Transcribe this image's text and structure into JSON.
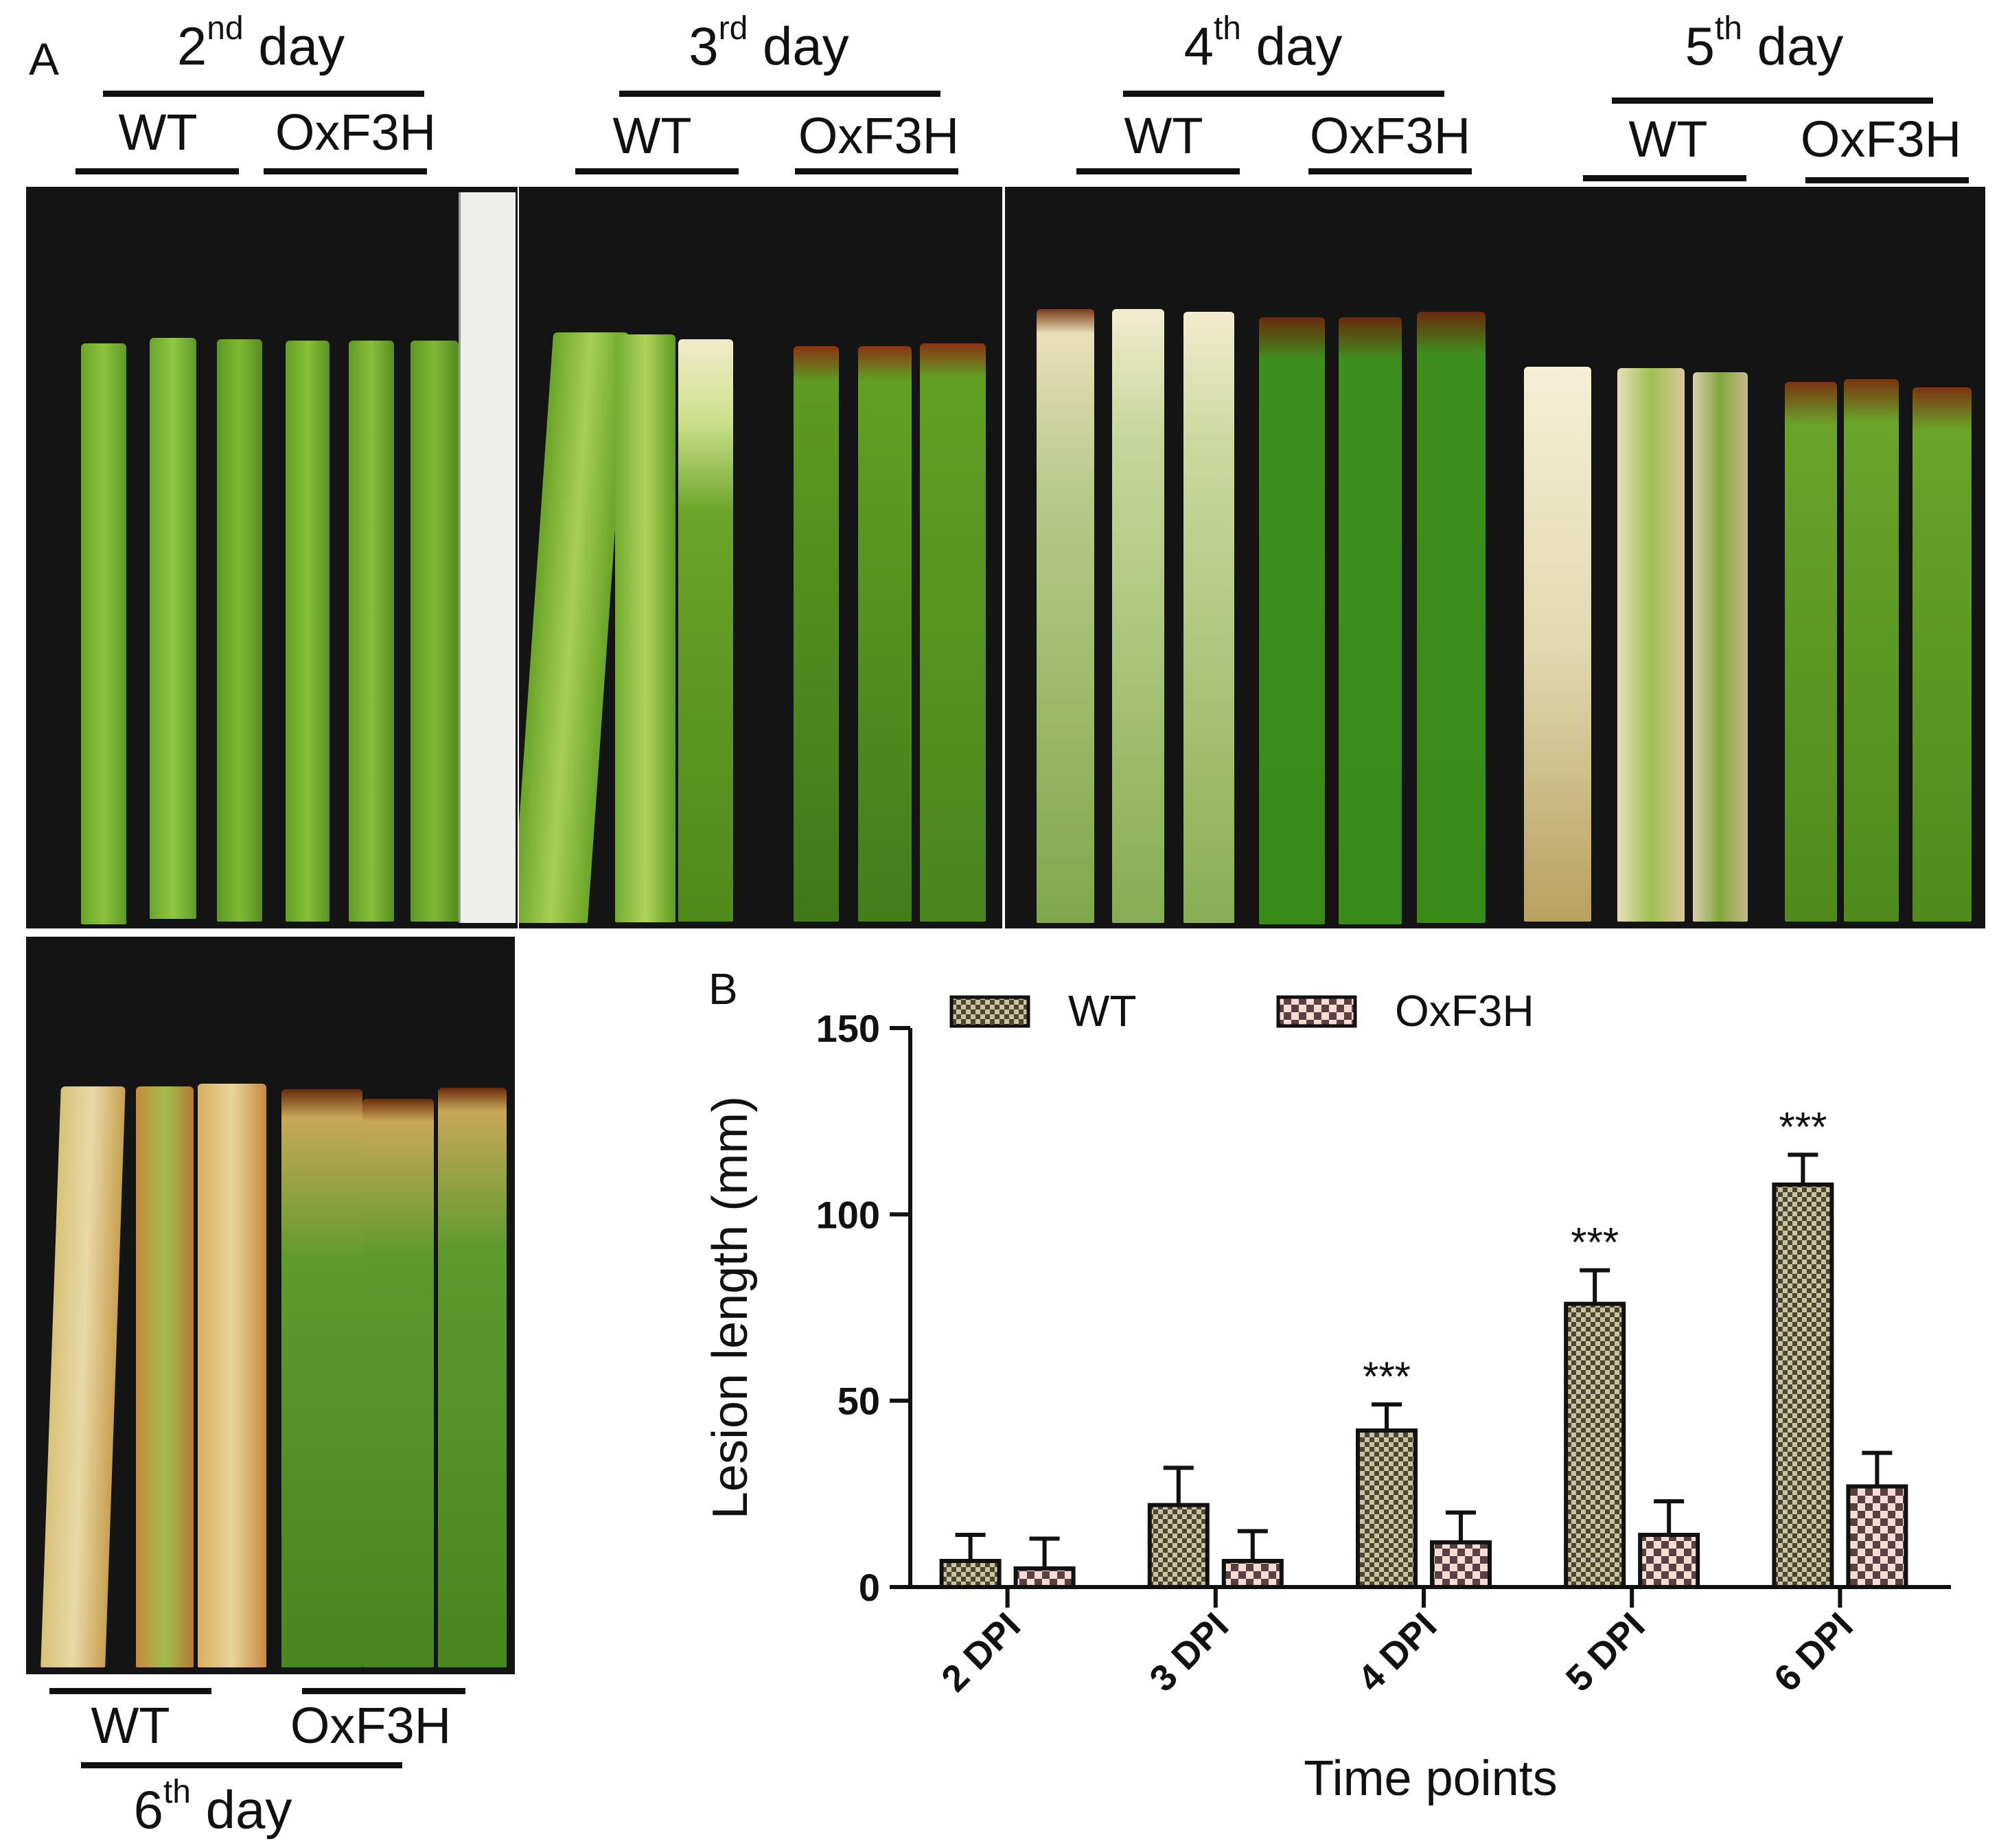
{
  "panel_a": {
    "letter": "A",
    "days": [
      {
        "num": "2",
        "suffix": "nd",
        "word": "day",
        "wt": "WT",
        "ox": "OxF3H"
      },
      {
        "num": "3",
        "suffix": "rd",
        "word": "day",
        "wt": "WT",
        "ox": "OxF3H"
      },
      {
        "num": "4",
        "suffix": "th",
        "word": "day",
        "wt": "WT",
        "ox": "OxF3H"
      },
      {
        "num": "5",
        "suffix": "th",
        "word": "day",
        "wt": "WT",
        "ox": "OxF3H"
      },
      {
        "num": "6",
        "suffix": "th",
        "word": "day",
        "wt": "WT",
        "ox": "OxF3H"
      }
    ]
  },
  "panel_b": {
    "letter": "B"
  },
  "colors": {
    "wt_bar": "#8e8a6a",
    "ox_bar": "#e8c6bd",
    "axis": "#111111"
  },
  "chart_data": {
    "type": "bar",
    "title": "",
    "xlabel": "Time points",
    "ylabel": "Lesion length (mm)",
    "categories": [
      "2 DPI",
      "3 DPI",
      "4 DPI",
      "5 DPI",
      "6 DPI"
    ],
    "ylim": [
      0,
      150
    ],
    "yticks": [
      0,
      50,
      100,
      150
    ],
    "series": [
      {
        "name": "WT",
        "values": [
          7,
          22,
          42,
          76,
          108
        ],
        "errors": [
          7,
          10,
          7,
          9,
          8
        ]
      },
      {
        "name": "OxF3H",
        "values": [
          5,
          7,
          12,
          14,
          27
        ],
        "errors": [
          8,
          8,
          8,
          9,
          9
        ]
      }
    ],
    "annotations": [
      "",
      "",
      "***",
      "***",
      "***"
    ]
  }
}
